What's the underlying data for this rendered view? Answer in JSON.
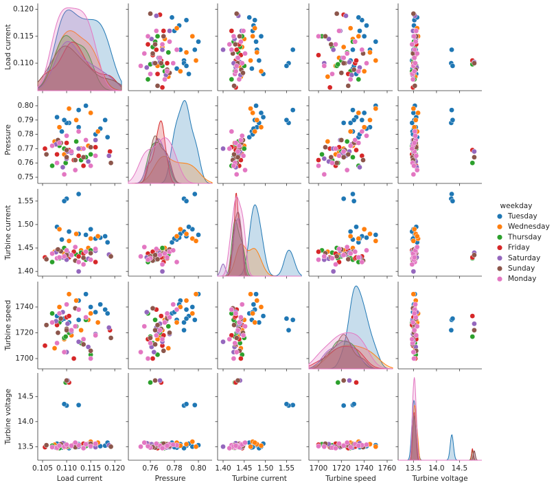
{
  "chart_data": {
    "type": "pairplot",
    "diag_kind": "kde",
    "legend_title": "weekday",
    "variables": [
      {
        "name": "Load current",
        "xlim": [
          0.104,
          0.1214
        ],
        "ylim": [
          0.1049,
          0.1211
        ],
        "xticks": [
          0.105,
          {
            "value": 0.11,
            "label": "0.110"
          },
          0.115,
          {
            "value": 0.12,
            "label": "0.120"
          }
        ],
        "yticks": [
          {
            "value": 0.11,
            "label": "0.110"
          },
          0.115,
          {
            "value": 0.12,
            "label": "0.120"
          }
        ]
      },
      {
        "name": "Pressure",
        "xlim": [
          0.7417,
          0.8114
        ],
        "ylim": [
          0.7457,
          0.8067
        ],
        "xticks": [
          0.76,
          0.78,
          {
            "value": 0.8,
            "label": "0.80"
          }
        ],
        "yticks": [
          0.75,
          0.76,
          0.77,
          0.78,
          0.79,
          {
            "value": 0.8,
            "label": "0.80"
          }
        ]
      },
      {
        "name": "Turbine current",
        "xlim": [
          1.387,
          1.585
        ],
        "ylim": [
          1.39,
          1.576
        ],
        "xticks": [
          {
            "value": 1.4,
            "label": "1.40"
          },
          1.45,
          {
            "value": 1.5,
            "label": "1.50"
          },
          1.55
        ],
        "yticks": [
          {
            "value": 1.4,
            "label": "1.40"
          },
          1.45,
          {
            "value": 1.5,
            "label": "1.50"
          },
          1.55
        ]
      },
      {
        "name": "Turbine speed",
        "xlim": [
          1691.6,
          1764.8
        ],
        "ylim": [
          1692,
          1759.7
        ],
        "xticks": [
          1700,
          1720,
          1740,
          1760
        ],
        "yticks": [
          1700,
          1720,
          1740
        ]
      },
      {
        "name": "Turbine voltage",
        "xlim": [
          13.167,
          14.985
        ],
        "ylim": [
          13.23,
          14.97
        ],
        "xticks": [
          13.5,
          {
            "value": 14,
            "label": "14.0"
          },
          14.5
        ],
        "yticks": [
          13.5,
          {
            "value": 14,
            "label": "14.0"
          },
          14.5
        ]
      }
    ],
    "series": [
      {
        "name": "Tuesday",
        "color": "#1f77b4",
        "points": [
          [
            0.118,
            0.79,
            1.475,
            1738,
            13.52
          ],
          [
            0.1125,
            0.785,
            1.48,
            1745,
            13.55
          ],
          [
            0.109,
            0.782,
            1.468,
            1730,
            13.48
          ],
          [
            0.115,
            0.795,
            1.49,
            1740,
            13.5
          ],
          [
            0.1185,
            0.778,
            1.462,
            1735,
            13.58
          ],
          [
            0.1105,
            0.788,
            1.485,
            1728,
            13.47
          ],
          [
            0.114,
            0.8,
            1.478,
            1750,
            13.53
          ],
          [
            0.117,
            0.784,
            1.472,
            1742,
            13.51
          ],
          [
            0.108,
            0.792,
            1.495,
            1733,
            13.56
          ],
          [
            0.116,
            0.78,
            1.47,
            1736,
            13.49
          ],
          [
            0.1125,
            0.797,
            1.565,
            1730,
            14.33
          ],
          [
            0.11,
            0.788,
            1.555,
            1722,
            14.32
          ],
          [
            0.1095,
            0.79,
            1.55,
            1731,
            14.35
          ]
        ]
      },
      {
        "name": "Wednesday",
        "color": "#ff7f0e",
        "points": [
          [
            0.112,
            0.79,
            1.48,
            1745,
            13.55
          ],
          [
            0.115,
            0.795,
            1.47,
            1735,
            13.6
          ],
          [
            0.1085,
            0.785,
            1.49,
            1740,
            13.52
          ],
          [
            0.1165,
            0.782,
            1.475,
            1728,
            13.58
          ],
          [
            0.1105,
            0.798,
            1.465,
            1750,
            13.5
          ],
          [
            0.113,
            0.77,
            1.445,
            1722,
            13.53
          ],
          [
            0.1095,
            0.766,
            1.438,
            1715,
            13.49
          ],
          [
            0.1145,
            0.772,
            1.45,
            1730,
            13.56
          ],
          [
            0.111,
            0.768,
            1.435,
            1718,
            13.51
          ],
          [
            0.1075,
            0.775,
            1.442,
            1708,
            13.54
          ]
        ]
      },
      {
        "name": "Thursday",
        "color": "#2ca02c",
        "points": [
          [
            0.1105,
            0.768,
            1.432,
            1720,
            13.5
          ],
          [
            0.113,
            0.762,
            1.44,
            1712,
            13.53
          ],
          [
            0.1085,
            0.772,
            1.428,
            1728,
            13.47
          ],
          [
            0.115,
            0.766,
            1.445,
            1703,
            13.55
          ],
          [
            0.107,
            0.758,
            1.42,
            1735,
            13.52
          ],
          [
            0.112,
            0.775,
            1.436,
            1725,
            13.49
          ],
          [
            0.1095,
            0.77,
            1.45,
            1716,
            13.56
          ],
          [
            0.114,
            0.764,
            1.425,
            1730,
            13.51
          ],
          [
            0.1098,
            0.76,
            1.428,
            1717,
            14.78
          ]
        ]
      },
      {
        "name": "Friday",
        "color": "#d62728",
        "points": [
          [
            0.119,
            0.768,
            1.435,
            1722,
            13.52
          ],
          [
            0.1055,
            0.77,
            1.43,
            1710,
            13.49
          ],
          [
            0.1115,
            0.762,
            1.442,
            1700,
            13.54
          ],
          [
            0.11,
            0.774,
            1.428,
            1732,
            13.5
          ],
          [
            0.1135,
            0.758,
            1.438,
            1715,
            13.56
          ],
          [
            0.108,
            0.766,
            1.445,
            1726,
            13.47
          ],
          [
            0.116,
            0.771,
            1.42,
            1718,
            13.53
          ],
          [
            0.1125,
            0.765,
            1.432,
            1738,
            13.51
          ],
          [
            0.1105,
            0.769,
            1.43,
            1733,
            14.78
          ]
        ]
      },
      {
        "name": "Saturday",
        "color": "#9467bd",
        "points": [
          [
            0.111,
            0.767,
            1.434,
            1721,
            13.51
          ],
          [
            0.1145,
            0.761,
            1.427,
            1709,
            13.55
          ],
          [
            0.1078,
            0.773,
            1.441,
            1729,
            13.48
          ],
          [
            0.1188,
            0.765,
            1.436,
            1724,
            13.53
          ],
          [
            0.1125,
            0.77,
            1.4,
            1713,
            13.5
          ],
          [
            0.1092,
            0.757,
            1.43,
            1736,
            13.57
          ],
          [
            0.116,
            0.776,
            1.444,
            1719,
            13.49
          ],
          [
            0.11,
            0.763,
            1.425,
            1705,
            13.52
          ],
          [
            0.1102,
            0.768,
            1.44,
            1727,
            14.82
          ]
        ]
      },
      {
        "name": "Sunday",
        "color": "#8c564b",
        "points": [
          [
            0.11,
            0.769,
            1.437,
            1723,
            13.52
          ],
          [
            0.1135,
            0.764,
            1.429,
            1711,
            13.48
          ],
          [
            0.1088,
            0.774,
            1.443,
            1731,
            13.55
          ],
          [
            0.1192,
            0.76,
            1.432,
            1716,
            13.5
          ],
          [
            0.1058,
            0.766,
            1.426,
            1726,
            13.53
          ],
          [
            0.115,
            0.771,
            1.439,
            1706,
            13.56
          ],
          [
            0.1118,
            0.762,
            1.423,
            1739,
            13.49
          ],
          [
            0.1082,
            0.776,
            1.447,
            1720,
            13.51
          ],
          [
            0.11,
            0.764,
            1.435,
            1722,
            14.82
          ]
        ]
      },
      {
        "name": "Monday",
        "color": "#e377c2",
        "points": [
          [
            0.111,
            0.768,
            1.435,
            1722,
            13.52
          ],
          [
            0.108,
            0.76,
            1.428,
            1712,
            13.48
          ],
          [
            0.114,
            0.776,
            1.442,
            1732,
            13.55
          ],
          [
            0.1095,
            0.752,
            1.432,
            1705,
            13.5
          ],
          [
            0.1125,
            0.782,
            1.42,
            1738,
            13.53
          ],
          [
            0.116,
            0.765,
            1.448,
            1718,
            13.56
          ],
          [
            0.107,
            0.772,
            1.438,
            1728,
            13.49
          ],
          [
            0.115,
            0.758,
            1.425,
            1700,
            13.51
          ],
          [
            0.11,
            0.779,
            1.445,
            1742,
            13.54
          ],
          [
            0.1135,
            0.77,
            1.415,
            1715,
            13.47
          ],
          [
            0.1118,
            0.755,
            1.452,
            1725,
            13.58
          ],
          [
            0.1085,
            0.774,
            1.43,
            1735,
            13.52
          ]
        ]
      }
    ]
  }
}
